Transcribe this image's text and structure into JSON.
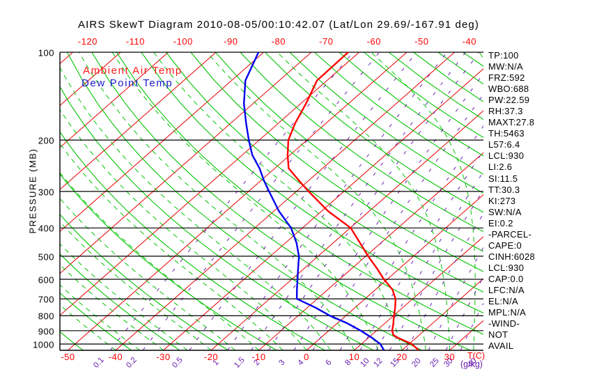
{
  "title": "AIRS SkewT Diagram 2010-08-05/00:10:42.07 (Lat/Lon 29.69/-167.91 deg)",
  "legend": {
    "ambient_label": "Ambient Air Temp",
    "dewpoint_label": "Dew Point Temp"
  },
  "axes": {
    "pressure_label": "PRESSURE (MB)",
    "pressure_ticks": [
      100,
      200,
      300,
      400,
      500,
      600,
      700,
      800,
      900,
      1000
    ],
    "temp_ticks_top": [
      -120,
      -110,
      -100,
      -90,
      -80,
      -70,
      -60,
      -50,
      -40
    ],
    "temp_ticks_bottom": [
      -50,
      -40,
      -30,
      -20,
      -10,
      0,
      10,
      20,
      30
    ],
    "temp_unit_label": "T(C)",
    "mixing_unit_label": "(g/kg)",
    "mixing_ratio_ticks": [
      0.1,
      0.2,
      0.5,
      1,
      1.5,
      2,
      3,
      4,
      6,
      8,
      10,
      12,
      15,
      20,
      25,
      30,
      40
    ]
  },
  "stats": [
    "TP:100",
    "MW:N/A",
    "FRZ:592",
    "WBO:688",
    "PW:22.59",
    "RH:37.3",
    "MAXT:27.8",
    "TH:5463",
    "L57:6.4",
    "LCL:930",
    "LI:2.6",
    "SI:11.5",
    "TT:30.3",
    "KI:273",
    "SW:N/A",
    "EI:0.2",
    "-PARCEL-",
    "CAPE:0",
    "CINH:6028",
    "LCL:930",
    "CAP:0.0",
    "LFC:N/A",
    "EL:N/A",
    "MPL:N/A",
    "-WIND-",
    "NOT",
    "AVAIL"
  ],
  "colors": {
    "isotherm": "#e60000",
    "temp_label": "#ff0000",
    "dry_adiabat": "#00c400",
    "moist_adiabat": "#00c400",
    "mixing_ratio": "#6a1fb0",
    "pressure_line": "#000000",
    "ambient_curve": "#ff0000",
    "dewpoint_curve": "#0000ee",
    "legend_ambient": "#ff1a1a",
    "legend_dewpoint": "#1a1acc"
  },
  "chart_data": {
    "type": "line",
    "title": "AIRS SkewT Diagram 2010-08-05/00:10:42.07 (Lat/Lon 29.69/-167.91 deg)",
    "xlabel": "Temperature (C), skewed isotherms",
    "ylabel": "PRESSURE (MB), logarithmic, inverted",
    "x_range_at_surface": [
      -50,
      40
    ],
    "y_range_mb": [
      100,
      1050
    ],
    "grid": "skew-t log-p: isotherms every 10C, dry adiabats every 10C, moist adiabats every 5C, mixing-ratio lines at labeled g/kg values",
    "series": [
      {
        "name": "Ambient Air Temp",
        "units": [
          "pressure_mb",
          "temp_C"
        ],
        "points": [
          [
            100,
            -62.3
          ],
          [
            125,
            -62.1
          ],
          [
            150,
            -58.9
          ],
          [
            175,
            -56.5
          ],
          [
            200,
            -53.9
          ],
          [
            225,
            -50.5
          ],
          [
            250,
            -47.1
          ],
          [
            275,
            -42.1
          ],
          [
            300,
            -37.4
          ],
          [
            350,
            -28.7
          ],
          [
            400,
            -19.9
          ],
          [
            450,
            -14.4
          ],
          [
            500,
            -9.5
          ],
          [
            550,
            -4.8
          ],
          [
            600,
            -0.7
          ],
          [
            650,
            3.5
          ],
          [
            700,
            6.4
          ],
          [
            750,
            8.4
          ],
          [
            800,
            10.1
          ],
          [
            850,
            11.8
          ],
          [
            900,
            13.3
          ],
          [
            930,
            14.5
          ],
          [
            950,
            16.0
          ],
          [
            1000,
            20.6
          ],
          [
            1050,
            23.5
          ]
        ]
      },
      {
        "name": "Dew Point Temp",
        "units": [
          "pressure_mb",
          "temp_C"
        ],
        "points": [
          [
            100,
            -81.1
          ],
          [
            125,
            -77.1
          ],
          [
            150,
            -71.9
          ],
          [
            175,
            -66.8
          ],
          [
            200,
            -62.2
          ],
          [
            225,
            -57.9
          ],
          [
            250,
            -53.2
          ],
          [
            275,
            -49.4
          ],
          [
            300,
            -45.7
          ],
          [
            350,
            -39.0
          ],
          [
            400,
            -32.4
          ],
          [
            450,
            -27.7
          ],
          [
            500,
            -24.0
          ],
          [
            550,
            -21.3
          ],
          [
            600,
            -18.8
          ],
          [
            650,
            -16.5
          ],
          [
            700,
            -14.3
          ],
          [
            750,
            -8.3
          ],
          [
            800,
            -3.3
          ],
          [
            850,
            2.2
          ],
          [
            900,
            6.7
          ],
          [
            950,
            10.6
          ],
          [
            1000,
            14.0
          ],
          [
            1050,
            16.2
          ]
        ]
      }
    ]
  }
}
